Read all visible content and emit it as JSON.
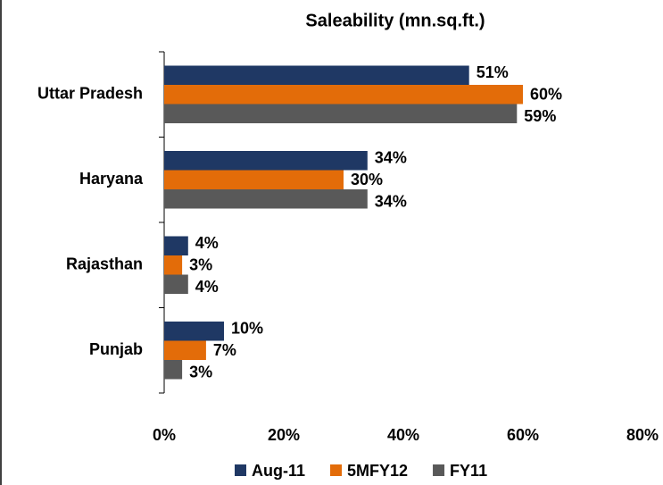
{
  "chart_data": {
    "type": "bar",
    "orientation": "horizontal",
    "title": "Saleability (mn.sq.ft.)",
    "categories": [
      "Uttar Pradesh",
      "Haryana",
      "Rajasthan",
      "Punjab"
    ],
    "series": [
      {
        "name": "Aug-11",
        "color": "#1f3864",
        "values": [
          51,
          34,
          4,
          10
        ],
        "value_labels": [
          "51%",
          "34%",
          "4%",
          "10%"
        ]
      },
      {
        "name": "5MFY12",
        "color": "#e36c09",
        "values": [
          60,
          30,
          3,
          7
        ],
        "value_labels": [
          "60%",
          "30%",
          "3%",
          "7%"
        ]
      },
      {
        "name": "FY11",
        "color": "#595959",
        "values": [
          59,
          34,
          4,
          3
        ],
        "value_labels": [
          "59%",
          "34%",
          "4%",
          "3%"
        ]
      }
    ],
    "xlim": [
      0,
      80
    ],
    "xticks": [
      {
        "value": 0,
        "label": "0%"
      },
      {
        "value": 20,
        "label": "20%"
      },
      {
        "value": 40,
        "label": "40%"
      },
      {
        "value": 60,
        "label": "60%"
      },
      {
        "value": 80,
        "label": "80%"
      }
    ],
    "grid": false,
    "legend": "bottom"
  }
}
